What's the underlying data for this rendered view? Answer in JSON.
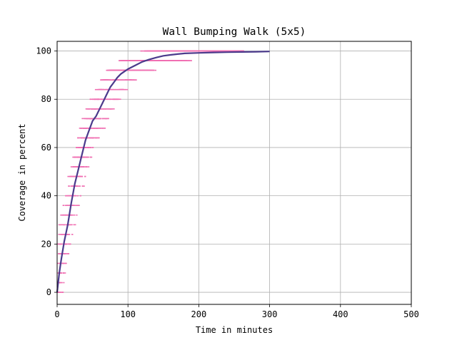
{
  "chart_data": {
    "type": "scatter",
    "title": "Wall Bumping Walk (5x5)",
    "xlabel": "Time in minutes",
    "ylabel": "Coverage in percent",
    "xlim": [
      0,
      500
    ],
    "ylim": [
      -5,
      104
    ],
    "xticks": [
      0,
      100,
      200,
      300,
      400,
      500
    ],
    "yticks": [
      0,
      20,
      40,
      60,
      80,
      100
    ],
    "grid": true,
    "colors": {
      "scatter": "#f06fb2",
      "mean_line": "#4b3a8c",
      "grid": "#b0b0b0"
    },
    "mean_line": {
      "x": [
        0,
        3,
        6,
        10,
        15,
        20,
        25,
        30,
        35,
        40,
        45,
        50,
        55,
        60,
        65,
        70,
        75,
        80,
        85,
        90,
        95,
        100,
        110,
        120,
        130,
        140,
        150,
        160,
        170,
        180,
        200,
        220,
        240,
        260,
        280,
        300
      ],
      "y": [
        0,
        8,
        14,
        21,
        28,
        37,
        45,
        51,
        57,
        63,
        67,
        71,
        73,
        76,
        79,
        82,
        85,
        87,
        89,
        90.5,
        91.5,
        92.5,
        94,
        95.5,
        96.5,
        97.3,
        98,
        98.4,
        98.7,
        99,
        99.2,
        99.4,
        99.5,
        99.6,
        99.7,
        99.8
      ]
    },
    "scatter_trials": 24,
    "scatter_x_max": 260
  }
}
